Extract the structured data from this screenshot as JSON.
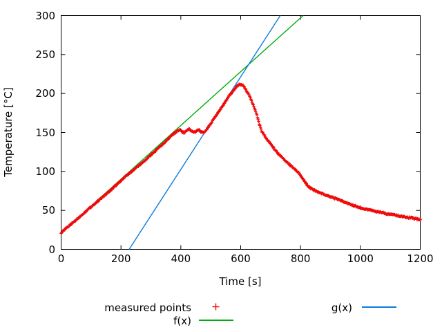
{
  "chart_data": {
    "type": "scatter",
    "title": "",
    "xlabel": "Time [s]",
    "ylabel": "Temperature [°C]",
    "xlim": [
      0,
      1200
    ],
    "ylim": [
      0,
      300
    ],
    "x_ticks": [
      0,
      200,
      400,
      600,
      800,
      1000,
      1200
    ],
    "y_ticks": [
      0,
      50,
      100,
      150,
      200,
      250,
      300
    ],
    "grid": false,
    "legend_position": "below-plot",
    "frame_color": "#000000",
    "series": [
      {
        "name": "measured points",
        "type": "points",
        "marker": "plus",
        "color": "#ee0a0a",
        "sample_interval_s": 2,
        "noise_amp_c": 0.9,
        "anchor_points": [
          [
            0,
            21.5
          ],
          [
            20,
            28
          ],
          [
            40,
            34.5
          ],
          [
            60,
            41
          ],
          [
            80,
            48
          ],
          [
            100,
            54.5
          ],
          [
            120,
            61
          ],
          [
            140,
            67.5
          ],
          [
            160,
            74
          ],
          [
            180,
            81
          ],
          [
            200,
            88
          ],
          [
            220,
            95
          ],
          [
            240,
            101
          ],
          [
            260,
            107.5
          ],
          [
            280,
            114
          ],
          [
            300,
            121
          ],
          [
            320,
            128
          ],
          [
            340,
            135
          ],
          [
            360,
            142.5
          ],
          [
            380,
            149.5
          ],
          [
            390,
            152.5
          ],
          [
            397,
            153.5
          ],
          [
            404,
            151
          ],
          [
            411,
            149.5
          ],
          [
            419,
            152
          ],
          [
            427,
            154.5
          ],
          [
            435,
            152.5
          ],
          [
            443,
            149.5
          ],
          [
            451,
            151.5
          ],
          [
            459,
            153.5
          ],
          [
            467,
            151
          ],
          [
            475,
            149.5
          ],
          [
            481,
            151
          ],
          [
            490,
            155.5
          ],
          [
            500,
            161
          ],
          [
            510,
            167
          ],
          [
            520,
            173
          ],
          [
            530,
            179
          ],
          [
            540,
            184.5
          ],
          [
            550,
            190
          ],
          [
            560,
            196
          ],
          [
            570,
            201
          ],
          [
            580,
            206
          ],
          [
            588,
            209.5
          ],
          [
            595,
            211
          ],
          [
            602,
            211.5
          ],
          [
            608,
            210.5
          ],
          [
            615,
            206.5
          ],
          [
            622,
            202
          ],
          [
            630,
            196
          ],
          [
            638,
            189
          ],
          [
            646,
            181.5
          ],
          [
            654,
            172
          ],
          [
            662,
            161
          ],
          [
            670,
            152
          ],
          [
            680,
            146
          ],
          [
            690,
            140
          ],
          [
            700,
            135
          ],
          [
            712,
            129
          ],
          [
            724,
            123.5
          ],
          [
            736,
            118.5
          ],
          [
            748,
            114
          ],
          [
            760,
            110
          ],
          [
            772,
            106
          ],
          [
            782,
            103
          ],
          [
            790,
            100
          ],
          [
            797,
            96.5
          ],
          [
            804,
            92.5
          ],
          [
            811,
            88.5
          ],
          [
            818,
            84.5
          ],
          [
            825,
            81.5
          ],
          [
            832,
            79
          ],
          [
            845,
            76
          ],
          [
            860,
            73.5
          ],
          [
            880,
            70.5
          ],
          [
            900,
            67.5
          ],
          [
            925,
            64
          ],
          [
            950,
            60
          ],
          [
            975,
            56.5
          ],
          [
            1000,
            53.5
          ],
          [
            1030,
            50.5
          ],
          [
            1060,
            48
          ],
          [
            1090,
            45.5
          ],
          [
            1120,
            43.5
          ],
          [
            1150,
            41.5
          ],
          [
            1175,
            40
          ],
          [
            1200,
            38
          ]
        ]
      },
      {
        "name": "f(x)",
        "type": "line",
        "color": "#00ab0e",
        "slope": 0.345,
        "intercept": 21
      },
      {
        "name": "g(x)",
        "type": "line",
        "color": "#0b7bdc",
        "slope": 0.594,
        "intercept": -135
      }
    ]
  },
  "axes": {
    "x_label": "Time [s]",
    "y_label": "Temperature [°C]"
  },
  "legend": {
    "measured_label": "measured points",
    "f_label": "f(x)",
    "g_label": "g(x)"
  }
}
